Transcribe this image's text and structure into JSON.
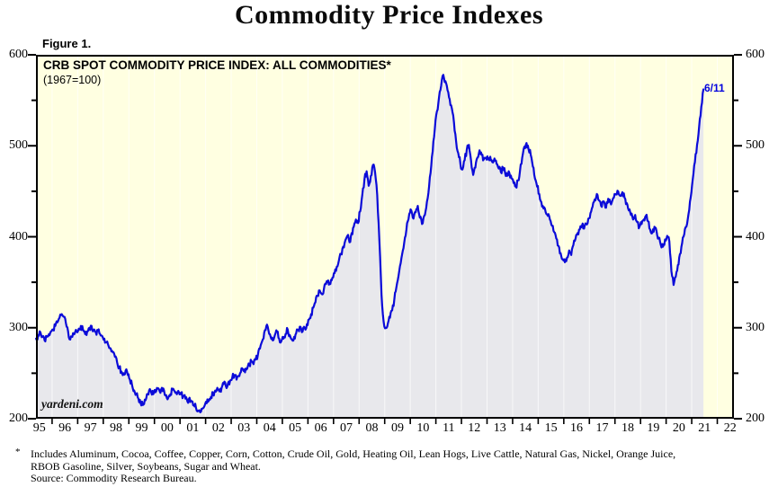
{
  "page": {
    "title": "Commodity Price Indexes",
    "figure_label": "Figure 1."
  },
  "chart": {
    "header_line1": "CRB SPOT COMMODITY PRICE INDEX: ALL COMMODITIES*",
    "header_line2": "(1967=100)",
    "watermark": "yardeni.com",
    "end_label": "6/11",
    "colors": {
      "line": "#0b0bd8",
      "end_label": "#0000dd",
      "plot_bg": "#ffffe1",
      "area_fill": "#e8e8ec",
      "year_gridline": "rgba(255,255,255,0.7)",
      "frame": "#000000"
    }
  },
  "chart_data": {
    "type": "area",
    "title": "CRB SPOT COMMODITY PRICE INDEX: ALL COMMODITIES*",
    "subtitle": "(1967=100)",
    "source": "Source: Commodity Research Bureau.",
    "x_start": 1995.375,
    "x_step": 0.0833333,
    "x_end_label": "6/11",
    "xlim": [
      1995.37,
      2022.65
    ],
    "ylim": [
      200,
      600
    ],
    "yticks": [
      200,
      300,
      400,
      500,
      600
    ],
    "yticks_minor": [
      250,
      350,
      450,
      550
    ],
    "grid_years_start": 1996,
    "grid_years_end": 2022,
    "xtick_labels": [
      "95",
      "96",
      "97",
      "98",
      "99",
      "00",
      "01",
      "02",
      "03",
      "04",
      "05",
      "06",
      "07",
      "08",
      "09",
      "10",
      "11",
      "12",
      "13",
      "14",
      "15",
      "16",
      "17",
      "18",
      "19",
      "20",
      "21",
      "22"
    ],
    "values": [
      288,
      292,
      295,
      290,
      286,
      290,
      293,
      296,
      298,
      302,
      306,
      311,
      315,
      312,
      305,
      296,
      287,
      290,
      293,
      296,
      299,
      302,
      298,
      293,
      296,
      300,
      302,
      298,
      295,
      297,
      293,
      291,
      288,
      284,
      280,
      277,
      273,
      268,
      262,
      257,
      252,
      250,
      253,
      248,
      243,
      237,
      231,
      227,
      222,
      217,
      215,
      221,
      227,
      231,
      229,
      227,
      229,
      233,
      230,
      234,
      231,
      226,
      223,
      227,
      232,
      230,
      227,
      229,
      227,
      225,
      222,
      219,
      223,
      219,
      215,
      212,
      209,
      207,
      211,
      214,
      217,
      220,
      224,
      228,
      231,
      234,
      230,
      234,
      238,
      236,
      239,
      242,
      245,
      248,
      243,
      247,
      251,
      254,
      251,
      255,
      259,
      263,
      260,
      265,
      270,
      277,
      285,
      295,
      302,
      297,
      290,
      286,
      292,
      296,
      288,
      285,
      288,
      293,
      298,
      292,
      287,
      290,
      294,
      298,
      301,
      296,
      300,
      304,
      309,
      315,
      322,
      328,
      335,
      341,
      337,
      343,
      348,
      352,
      348,
      355,
      360,
      367,
      374,
      381,
      389,
      396,
      401,
      394,
      404,
      411,
      419,
      415,
      428,
      446,
      463,
      472,
      456,
      467,
      479,
      471,
      446,
      396,
      336,
      307,
      300,
      305,
      311,
      319,
      331,
      345,
      357,
      371,
      385,
      399,
      415,
      425,
      429,
      420,
      427,
      434,
      421,
      414,
      423,
      432,
      448,
      470,
      494,
      518,
      538,
      554,
      566,
      578,
      571,
      561,
      551,
      541,
      525,
      505,
      492,
      480,
      474,
      484,
      496,
      501,
      484,
      468,
      476,
      487,
      495,
      490,
      485,
      487,
      485,
      488,
      482,
      486,
      480,
      475,
      471,
      476,
      470,
      467,
      470,
      464,
      459,
      455,
      462,
      473,
      487,
      499,
      503,
      496,
      490,
      477,
      464,
      455,
      447,
      438,
      431,
      427,
      423,
      419,
      412,
      405,
      398,
      390,
      382,
      375,
      372,
      377,
      385,
      380,
      391,
      398,
      404,
      408,
      412,
      409,
      414,
      420,
      426,
      433,
      441,
      447,
      440,
      434,
      439,
      432,
      437,
      441,
      438,
      443,
      447,
      450,
      445,
      449,
      443,
      437,
      429,
      424,
      419,
      424,
      416,
      411,
      414,
      419,
      423,
      417,
      408,
      404,
      411,
      406,
      399,
      391,
      389,
      397,
      401,
      395,
      362,
      347,
      356,
      369,
      381,
      393,
      403,
      411,
      425,
      443,
      463,
      482,
      501,
      522,
      543,
      562
    ]
  },
  "footnote": {
    "marker": "*",
    "line1": "Includes Aluminum, Cocoa, Coffee, Copper, Corn, Cotton, Crude Oil, Gold, Heating Oil, Lean Hogs, Live Cattle, Natural Gas, Nickel, Orange Juice,",
    "line2": "RBOB Gasoline, Silver, Soybeans, Sugar and Wheat.",
    "line3": "Source: Commodity Research Bureau."
  }
}
